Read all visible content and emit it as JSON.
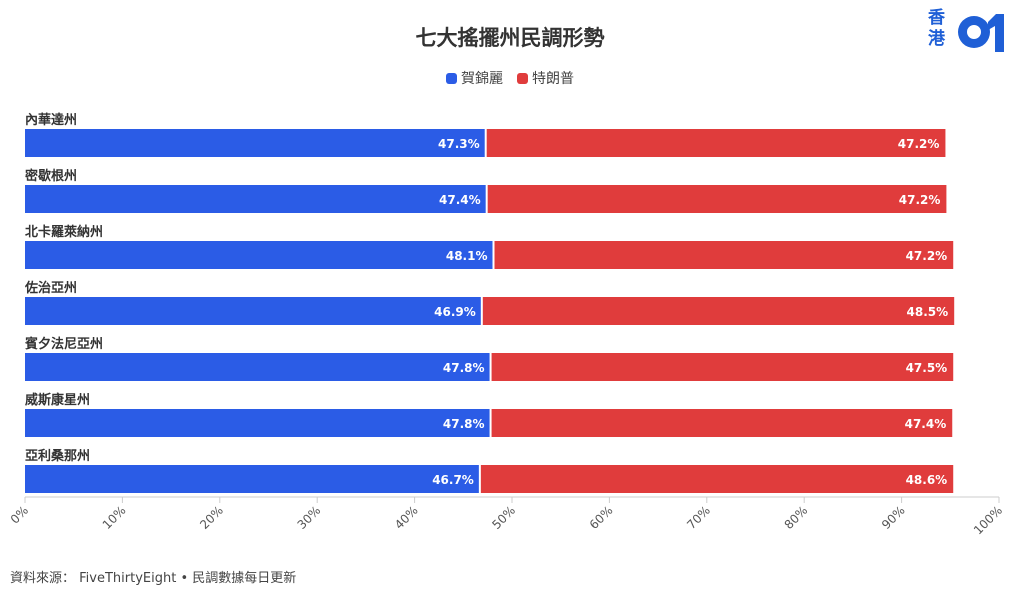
{
  "title": "七大搖擺州民調形勢",
  "logo": {
    "text": "香港",
    "mark": "01"
  },
  "legend": [
    {
      "name": "賀錦麗",
      "color": "#2b5ce6"
    },
    {
      "name": "特朗普",
      "color": "#e03c3c"
    }
  ],
  "source": "資料來源： FiveThirtyEight • 民調數據每日更新",
  "chart_data": {
    "type": "bar",
    "orientation": "horizontal",
    "stacked": true,
    "title": "七大搖擺州民調形勢",
    "categories": [
      "內華達州",
      "密歇根州",
      "北卡羅萊納州",
      "佐治亞州",
      "賓夕法尼亞州",
      "威斯康星州",
      "亞利桑那州"
    ],
    "series": [
      {
        "name": "賀錦麗",
        "color": "#2b5ce6",
        "values": [
          47.3,
          47.4,
          48.1,
          46.9,
          47.8,
          47.8,
          46.7
        ]
      },
      {
        "name": "特朗普",
        "color": "#e03c3c",
        "values": [
          47.2,
          47.2,
          47.2,
          48.5,
          47.5,
          47.4,
          48.6
        ]
      }
    ],
    "xlim": [
      0,
      100
    ],
    "xticks": [
      "0%",
      "10%",
      "20%",
      "30%",
      "40%",
      "50%",
      "60%",
      "70%",
      "80%",
      "90%",
      "100%"
    ],
    "value_suffix": "%",
    "legend_position": "top-center"
  }
}
